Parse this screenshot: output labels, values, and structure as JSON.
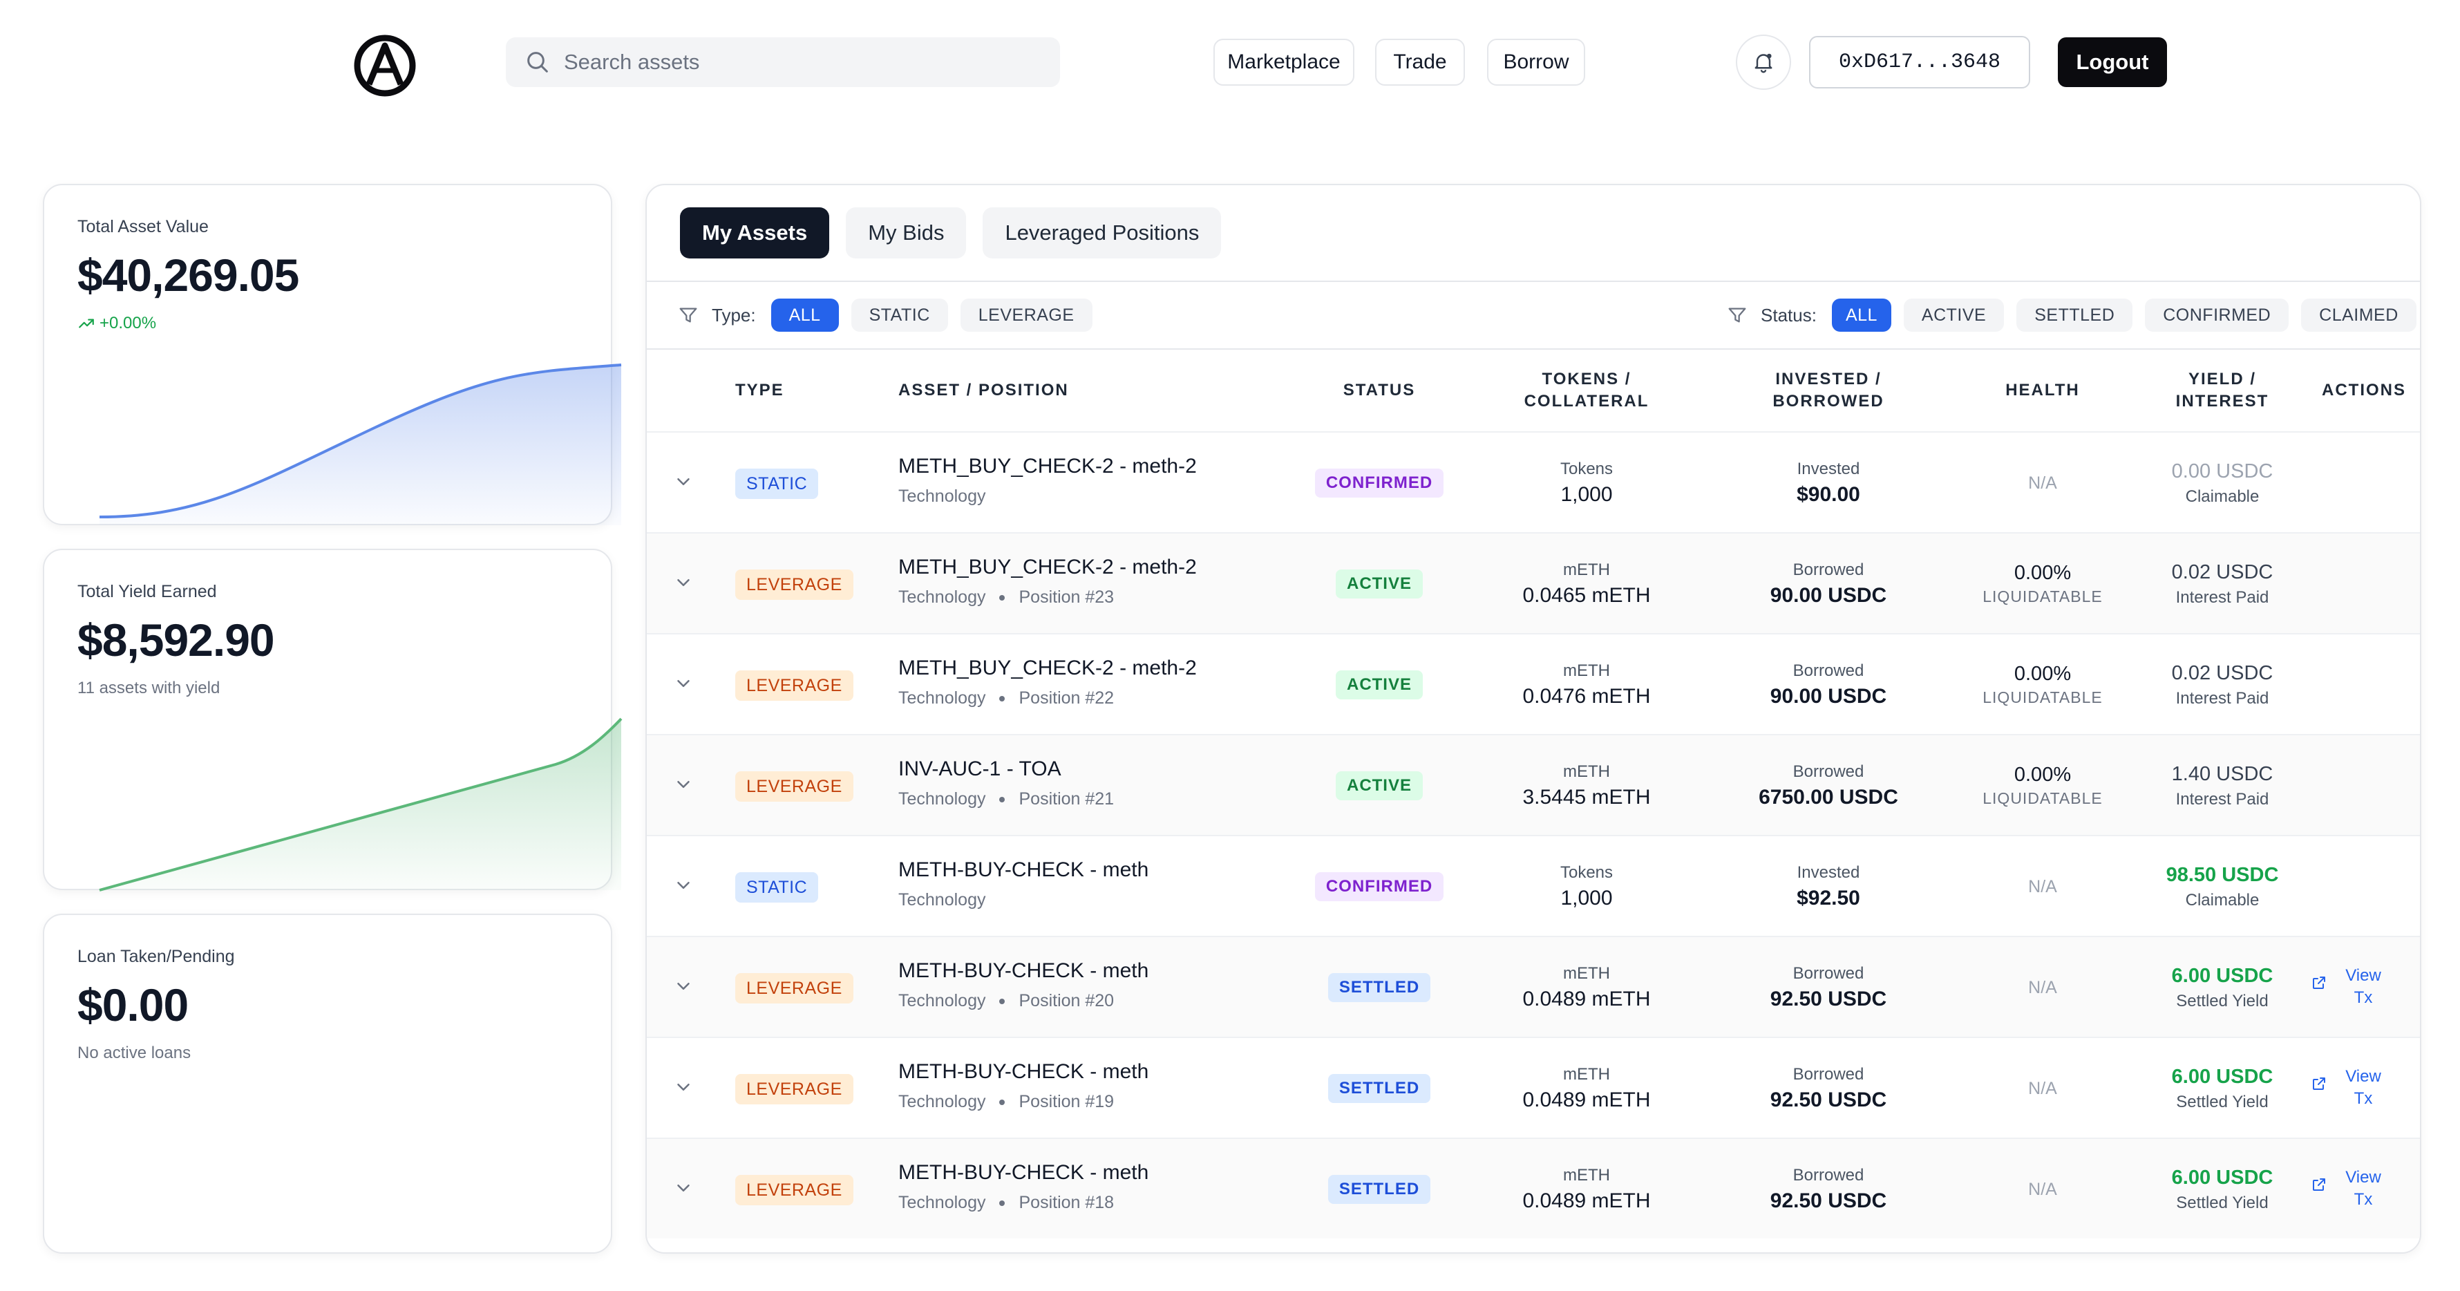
{
  "header": {
    "search_placeholder": "Search assets",
    "nav": [
      "Marketplace",
      "Trade",
      "Borrow"
    ],
    "wallet": "0xD617...3648",
    "logout": "Logout"
  },
  "stats": [
    {
      "label": "Total Asset Value",
      "value": "$40,269.05",
      "sub": "+0.00%",
      "trend": "up",
      "color": "#5b87e8"
    },
    {
      "label": "Total Yield Earned",
      "value": "$8,592.90",
      "sub": "11 assets with yield",
      "color": "#5cb87a"
    },
    {
      "label": "Loan Taken/Pending",
      "value": "$0.00",
      "sub": "No active loans"
    }
  ],
  "tabs": [
    "My Assets",
    "My Bids",
    "Leveraged Positions"
  ],
  "filters": {
    "type_label": "Type:",
    "type_options": [
      "ALL",
      "STATIC",
      "LEVERAGE"
    ],
    "status_label": "Status:",
    "status_options": [
      "ALL",
      "ACTIVE",
      "SETTLED",
      "CONFIRMED",
      "CLAIMED"
    ]
  },
  "table": {
    "headers": {
      "type": "TYPE",
      "asset": "ASSET / POSITION",
      "status": "STATUS",
      "tokens_1": "TOKENS /",
      "tokens_2": "COLLATERAL",
      "invested_1": "INVESTED /",
      "invested_2": "BORROWED",
      "health": "HEALTH",
      "yield_1": "YIELD /",
      "yield_2": "INTEREST",
      "actions": "ACTIONS"
    },
    "rows": [
      {
        "type": "STATIC",
        "name": "METH_BUY_CHECK-2 - meth-2",
        "category": "Technology",
        "position": "",
        "status": "CONFIRMED",
        "tok_label": "Tokens",
        "tok_value": "1,000",
        "inv_label": "Invested",
        "inv_value": "$90.00",
        "health": "N/A",
        "health_sub": "",
        "yield": "0.00 USDC",
        "yield_sub": "Claimable",
        "yield_style": "gray",
        "action": ""
      },
      {
        "type": "LEVERAGE",
        "name": "METH_BUY_CHECK-2 - meth-2",
        "category": "Technology",
        "position": "Position #23",
        "status": "ACTIVE",
        "tok_label": "mETH",
        "tok_value": "0.0465 mETH",
        "inv_label": "Borrowed",
        "inv_value": "90.00 USDC",
        "health": "0.00%",
        "health_sub": "LIQUIDATABLE",
        "yield": "0.02 USDC",
        "yield_sub": "Interest Paid",
        "yield_style": "",
        "action": ""
      },
      {
        "type": "LEVERAGE",
        "name": "METH_BUY_CHECK-2 - meth-2",
        "category": "Technology",
        "position": "Position #22",
        "status": "ACTIVE",
        "tok_label": "mETH",
        "tok_value": "0.0476 mETH",
        "inv_label": "Borrowed",
        "inv_value": "90.00 USDC",
        "health": "0.00%",
        "health_sub": "LIQUIDATABLE",
        "yield": "0.02 USDC",
        "yield_sub": "Interest Paid",
        "yield_style": "",
        "action": ""
      },
      {
        "type": "LEVERAGE",
        "name": "INV-AUC-1 - TOA",
        "category": "Technology",
        "position": "Position #21",
        "status": "ACTIVE",
        "tok_label": "mETH",
        "tok_value": "3.5445 mETH",
        "inv_label": "Borrowed",
        "inv_value": "6750.00 USDC",
        "health": "0.00%",
        "health_sub": "LIQUIDATABLE",
        "yield": "1.40 USDC",
        "yield_sub": "Interest Paid",
        "yield_style": "",
        "action": ""
      },
      {
        "type": "STATIC",
        "name": "METH-BUY-CHECK - meth",
        "category": "Technology",
        "position": "",
        "status": "CONFIRMED",
        "tok_label": "Tokens",
        "tok_value": "1,000",
        "inv_label": "Invested",
        "inv_value": "$92.50",
        "health": "N/A",
        "health_sub": "",
        "yield": "98.50 USDC",
        "yield_sub": "Claimable",
        "yield_style": "green",
        "action": ""
      },
      {
        "type": "LEVERAGE",
        "name": "METH-BUY-CHECK - meth",
        "category": "Technology",
        "position": "Position #20",
        "status": "SETTLED",
        "tok_label": "mETH",
        "tok_value": "0.0489 mETH",
        "inv_label": "Borrowed",
        "inv_value": "92.50 USDC",
        "health": "N/A",
        "health_sub": "",
        "yield": "6.00 USDC",
        "yield_sub": "Settled Yield",
        "yield_style": "green",
        "action": "View Tx"
      },
      {
        "type": "LEVERAGE",
        "name": "METH-BUY-CHECK - meth",
        "category": "Technology",
        "position": "Position #19",
        "status": "SETTLED",
        "tok_label": "mETH",
        "tok_value": "0.0489 mETH",
        "inv_label": "Borrowed",
        "inv_value": "92.50 USDC",
        "health": "N/A",
        "health_sub": "",
        "yield": "6.00 USDC",
        "yield_sub": "Settled Yield",
        "yield_style": "green",
        "action": "View Tx"
      },
      {
        "type": "LEVERAGE",
        "name": "METH-BUY-CHECK - meth",
        "category": "Technology",
        "position": "Position #18",
        "status": "SETTLED",
        "tok_label": "mETH",
        "tok_value": "0.0489 mETH",
        "inv_label": "Borrowed",
        "inv_value": "92.50 USDC",
        "health": "N/A",
        "health_sub": "",
        "yield": "6.00 USDC",
        "yield_sub": "Settled Yield",
        "yield_style": "green",
        "action": "View Tx"
      }
    ]
  }
}
